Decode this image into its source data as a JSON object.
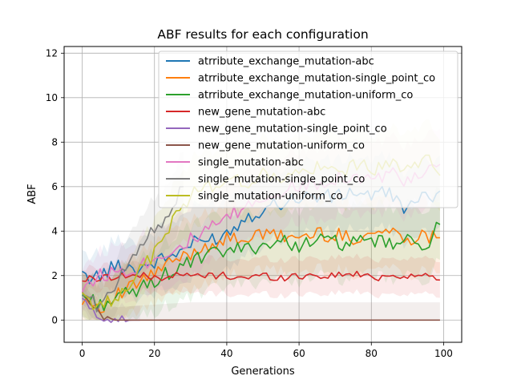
{
  "chart_data": {
    "type": "line",
    "title": "ABF results for each configuration",
    "xlabel": "Generations",
    "ylabel": "ABF",
    "xlim": [
      -5,
      105
    ],
    "ylim": [
      -1,
      12.3
    ],
    "xticks": [
      0,
      20,
      40,
      60,
      80,
      100
    ],
    "yticks": [
      0,
      2,
      4,
      6,
      8,
      10,
      12
    ],
    "grid": true,
    "legend_position": "top-right",
    "shaded_band": "uncertainty band around each series",
    "series": [
      {
        "name": "atrribute_exchange_mutation-abc",
        "color": "#1f77b4",
        "x": [
          0,
          5,
          10,
          15,
          20,
          25,
          30,
          35,
          40,
          45,
          50,
          55,
          60,
          65,
          70,
          75,
          80,
          85,
          90,
          95,
          99
        ],
        "y": [
          1.9,
          2.0,
          2.5,
          2.3,
          2.6,
          2.9,
          3.4,
          3.6,
          3.9,
          4.6,
          5.0,
          5.3,
          5.5,
          5.6,
          5.5,
          5.8,
          5.6,
          5.7,
          5.0,
          5.5,
          5.8
        ]
      },
      {
        "name": "atrribute_exchange_mutation-single_point_co",
        "color": "#ff7f0e",
        "x": [
          0,
          5,
          10,
          15,
          20,
          25,
          30,
          35,
          40,
          45,
          50,
          55,
          60,
          65,
          70,
          75,
          80,
          85,
          90,
          95,
          99
        ],
        "y": [
          1.0,
          0.6,
          1.1,
          1.6,
          2.1,
          2.6,
          3.0,
          3.4,
          3.6,
          3.7,
          3.8,
          3.8,
          3.7,
          3.9,
          3.8,
          3.7,
          3.9,
          4.0,
          3.7,
          3.8,
          3.7
        ]
      },
      {
        "name": "atrribute_exchange_mutation-uniform_co",
        "color": "#2ca02c",
        "x": [
          0,
          5,
          10,
          15,
          20,
          25,
          30,
          35,
          40,
          45,
          50,
          55,
          60,
          65,
          70,
          75,
          80,
          85,
          90,
          95,
          99
        ],
        "y": [
          1.1,
          0.7,
          1.0,
          1.3,
          1.8,
          2.2,
          2.6,
          2.9,
          3.1,
          3.2,
          3.4,
          3.5,
          3.4,
          3.6,
          3.5,
          3.4,
          3.6,
          3.4,
          3.5,
          3.4,
          4.3
        ]
      },
      {
        "name": "new_gene_mutation-abc",
        "color": "#d62728",
        "x": [
          0,
          5,
          10,
          15,
          20,
          25,
          30,
          35,
          40,
          45,
          50,
          55,
          60,
          65,
          70,
          75,
          80,
          85,
          90,
          95,
          99
        ],
        "y": [
          1.8,
          1.9,
          2.0,
          2.0,
          1.9,
          2.0,
          2.0,
          2.0,
          2.0,
          1.9,
          2.0,
          1.9,
          2.0,
          2.0,
          2.0,
          2.1,
          1.9,
          2.0,
          2.0,
          2.0,
          1.8
        ]
      },
      {
        "name": "new_gene_mutation-single_point_co",
        "color": "#9467bd",
        "x": [
          0,
          2,
          4,
          6,
          8,
          10,
          12,
          14,
          16
        ],
        "y": [
          1.0,
          0.5,
          0.2,
          0.1,
          0.05,
          0.02,
          0.01,
          0.0,
          0.0
        ]
      },
      {
        "name": "new_gene_mutation-uniform_co",
        "color": "#8c564b",
        "x": [
          0,
          3,
          6,
          9,
          12,
          20,
          40,
          60,
          80,
          99
        ],
        "y": [
          1.2,
          0.5,
          0.1,
          0.0,
          0.0,
          0.0,
          0.0,
          0.0,
          0.0,
          0.0
        ]
      },
      {
        "name": "single_mutation-abc",
        "color": "#e377c2",
        "x": [
          0,
          5,
          10,
          15,
          20,
          25,
          30,
          35,
          40,
          45,
          50,
          55,
          60,
          65,
          70,
          75,
          80,
          85,
          90,
          95,
          99
        ],
        "y": [
          1.5,
          2.0,
          2.2,
          2.4,
          2.8,
          3.2,
          3.6,
          4.0,
          4.6,
          5.0,
          5.5,
          5.8,
          6.0,
          6.2,
          6.4,
          6.5,
          6.3,
          6.6,
          6.2,
          6.5,
          7.0
        ]
      },
      {
        "name": "single_mutation-single_point_co",
        "color": "#7f7f7f",
        "x": [
          0,
          5,
          10,
          14,
          16,
          18,
          20,
          23,
          26,
          28
        ],
        "y": [
          1.2,
          0.6,
          1.6,
          3.0,
          3.5,
          3.7,
          4.1,
          4.5,
          5.5,
          6.0
        ]
      },
      {
        "name": "single_mutation-uniform_co",
        "color": "#bcbd22",
        "x": [
          0,
          5,
          10,
          15,
          20,
          25,
          30,
          35,
          40,
          45,
          50,
          55,
          60,
          65,
          70,
          75,
          80,
          85,
          90,
          95,
          99
        ],
        "y": [
          1.2,
          0.5,
          1.2,
          2.0,
          3.0,
          4.5,
          5.6,
          6.0,
          6.3,
          6.2,
          6.5,
          6.4,
          6.6,
          6.8,
          6.6,
          7.0,
          6.8,
          6.9,
          7.0,
          7.3,
          6.5
        ]
      }
    ]
  }
}
